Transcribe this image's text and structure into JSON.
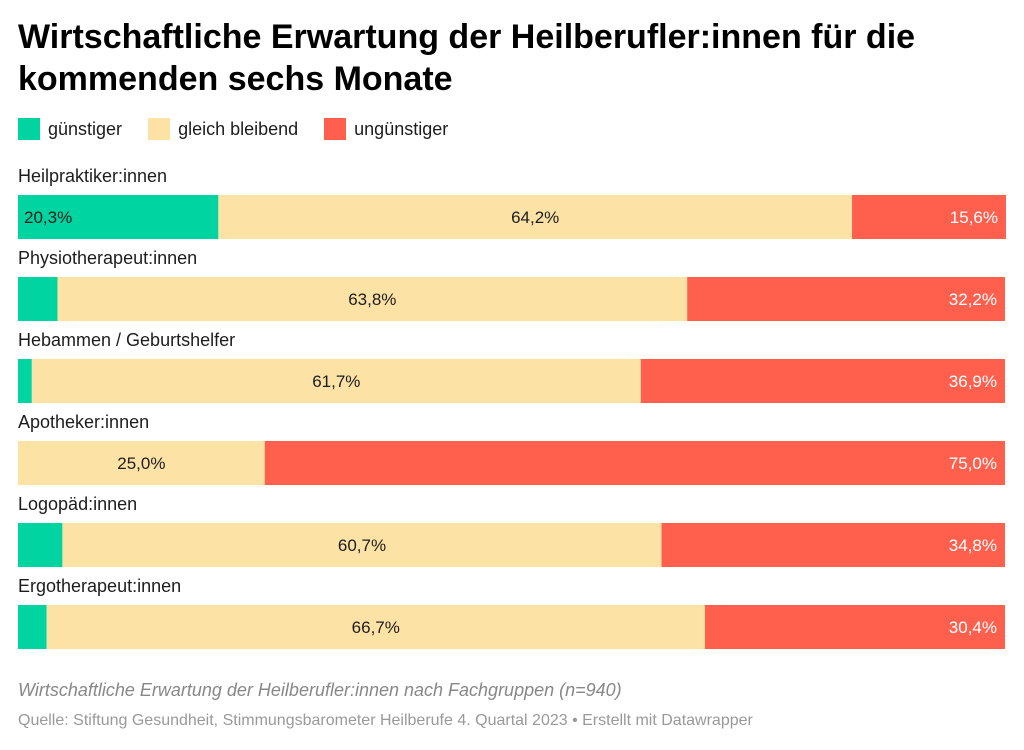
{
  "title": "Wirtschaftliche Erwartung der Heilberufler:innen für die kommenden sechs Monate",
  "legend": [
    {
      "label": "günstiger",
      "color": "#00d4a0"
    },
    {
      "label": "gleich bleibend",
      "color": "#fce2a4"
    },
    {
      "label": "ungünstiger",
      "color": "#ff604e"
    }
  ],
  "chart_data": {
    "type": "bar",
    "orientation": "horizontal",
    "stacked": true,
    "xlim": [
      0,
      100
    ],
    "unit": "%",
    "categories": [
      "Heilpraktiker:innen",
      "Physiotherapeut:innen",
      "Hebammen / Geburtshelfer",
      "Apotheker:innen",
      "Logopäd:innen",
      "Ergotherapeut:innen"
    ],
    "series": [
      {
        "name": "günstiger",
        "color": "#00d4a0",
        "values": [
          20.3,
          4.0,
          1.4,
          0.0,
          4.5,
          2.9
        ],
        "labels": [
          "20,3%",
          "",
          "",
          "",
          "",
          ""
        ]
      },
      {
        "name": "gleich bleibend",
        "color": "#fce2a4",
        "values": [
          64.2,
          63.8,
          61.7,
          25.0,
          60.7,
          66.7
        ],
        "labels": [
          "64,2%",
          "63,8%",
          "61,7%",
          "25,0%",
          "60,7%",
          "66,7%"
        ]
      },
      {
        "name": "ungünstiger",
        "color": "#ff604e",
        "values": [
          15.6,
          32.2,
          36.9,
          75.0,
          34.8,
          30.4
        ],
        "labels": [
          "15,6%",
          "32,2%",
          "36,9%",
          "75,0%",
          "34,8%",
          "30,4%"
        ]
      }
    ]
  },
  "footer": {
    "note": "Wirtschaftliche Erwartung der Heilberufler:innen nach Fachgruppen (n=940)",
    "source": "Quelle: Stiftung Gesundheit, Stimmungsbarometer Heilberufe 4. Quartal 2023 • Erstellt mit Datawrapper"
  }
}
